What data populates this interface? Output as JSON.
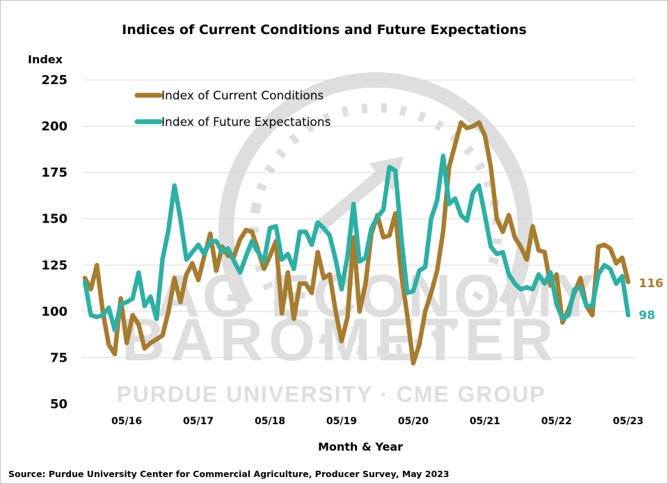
{
  "watermark": {
    "line1": "AG ECONOMY",
    "line2": "BAROMETER",
    "line3": "PURDUE UNIVERSITY · CME GROUP"
  },
  "chart_data": {
    "type": "line",
    "title": "Indices of Current Conditions and Future Expectations",
    "ylabel": "Index",
    "xlabel": "Month & Year",
    "source": "Source: Purdue University Center for Commercial Agriculture, Producer Survey, May 2023",
    "ylim": [
      50,
      225
    ],
    "yticks": [
      50,
      75,
      100,
      125,
      150,
      175,
      200,
      225
    ],
    "ytick_labels": [
      "50",
      "75",
      "100",
      "125",
      "150",
      "175",
      "200",
      "225"
    ],
    "x_start": "2015-10",
    "x_end": "2023-05",
    "xtick_dates": [
      "2016-05",
      "2017-05",
      "2018-05",
      "2019-05",
      "2020-05",
      "2021-05",
      "2022-05",
      "2023-05"
    ],
    "xtick_labels": [
      "05/16",
      "05/17",
      "05/18",
      "05/19",
      "05/20",
      "05/21",
      "05/22",
      "05/23"
    ],
    "grid": "horizontal",
    "legend_position": "top-left",
    "series": [
      {
        "name": "Index of Current Conditions",
        "color": "#A67C2E",
        "end_label": "116",
        "values": [
          118,
          112,
          125,
          100,
          82,
          77,
          107,
          83,
          98,
          93,
          80,
          83,
          85,
          87,
          100,
          118,
          105,
          120,
          126,
          117,
          130,
          142,
          122,
          135,
          130,
          130,
          139,
          144,
          143,
          133,
          123,
          130,
          138,
          99,
          121,
          96,
          115,
          115,
          110,
          132,
          118,
          120,
          100,
          84,
          97,
          140,
          100,
          115,
          142,
          152,
          140,
          141,
          153,
          120,
          98,
          72,
          82,
          100,
          110,
          122,
          143,
          178,
          190,
          202,
          199,
          200,
          202,
          195,
          178,
          150,
          143,
          152,
          140,
          135,
          128,
          146,
          133,
          132,
          114,
          120,
          94,
          101,
          110,
          118,
          103,
          98,
          135,
          136,
          134,
          126,
          129,
          116
        ]
      },
      {
        "name": "Index of Future Expectations",
        "color": "#2DB0A4",
        "end_label": "98",
        "values": [
          116,
          98,
          97,
          98,
          102,
          90,
          104,
          105,
          107,
          121,
          103,
          108,
          96,
          128,
          144,
          168,
          150,
          128,
          132,
          136,
          131,
          138,
          138,
          132,
          134,
          127,
          121,
          130,
          138,
          132,
          127,
          145,
          146,
          128,
          131,
          123,
          143,
          143,
          136,
          148,
          145,
          141,
          128,
          112,
          130,
          158,
          127,
          129,
          145,
          151,
          155,
          178,
          176,
          140,
          110,
          111,
          122,
          124,
          150,
          160,
          184,
          158,
          161,
          152,
          149,
          164,
          168,
          152,
          135,
          131,
          132,
          120,
          115,
          112,
          113,
          112,
          120,
          115,
          121,
          104,
          96,
          98,
          112,
          113,
          103,
          103,
          120,
          125,
          123,
          115,
          119,
          98
        ]
      }
    ]
  }
}
